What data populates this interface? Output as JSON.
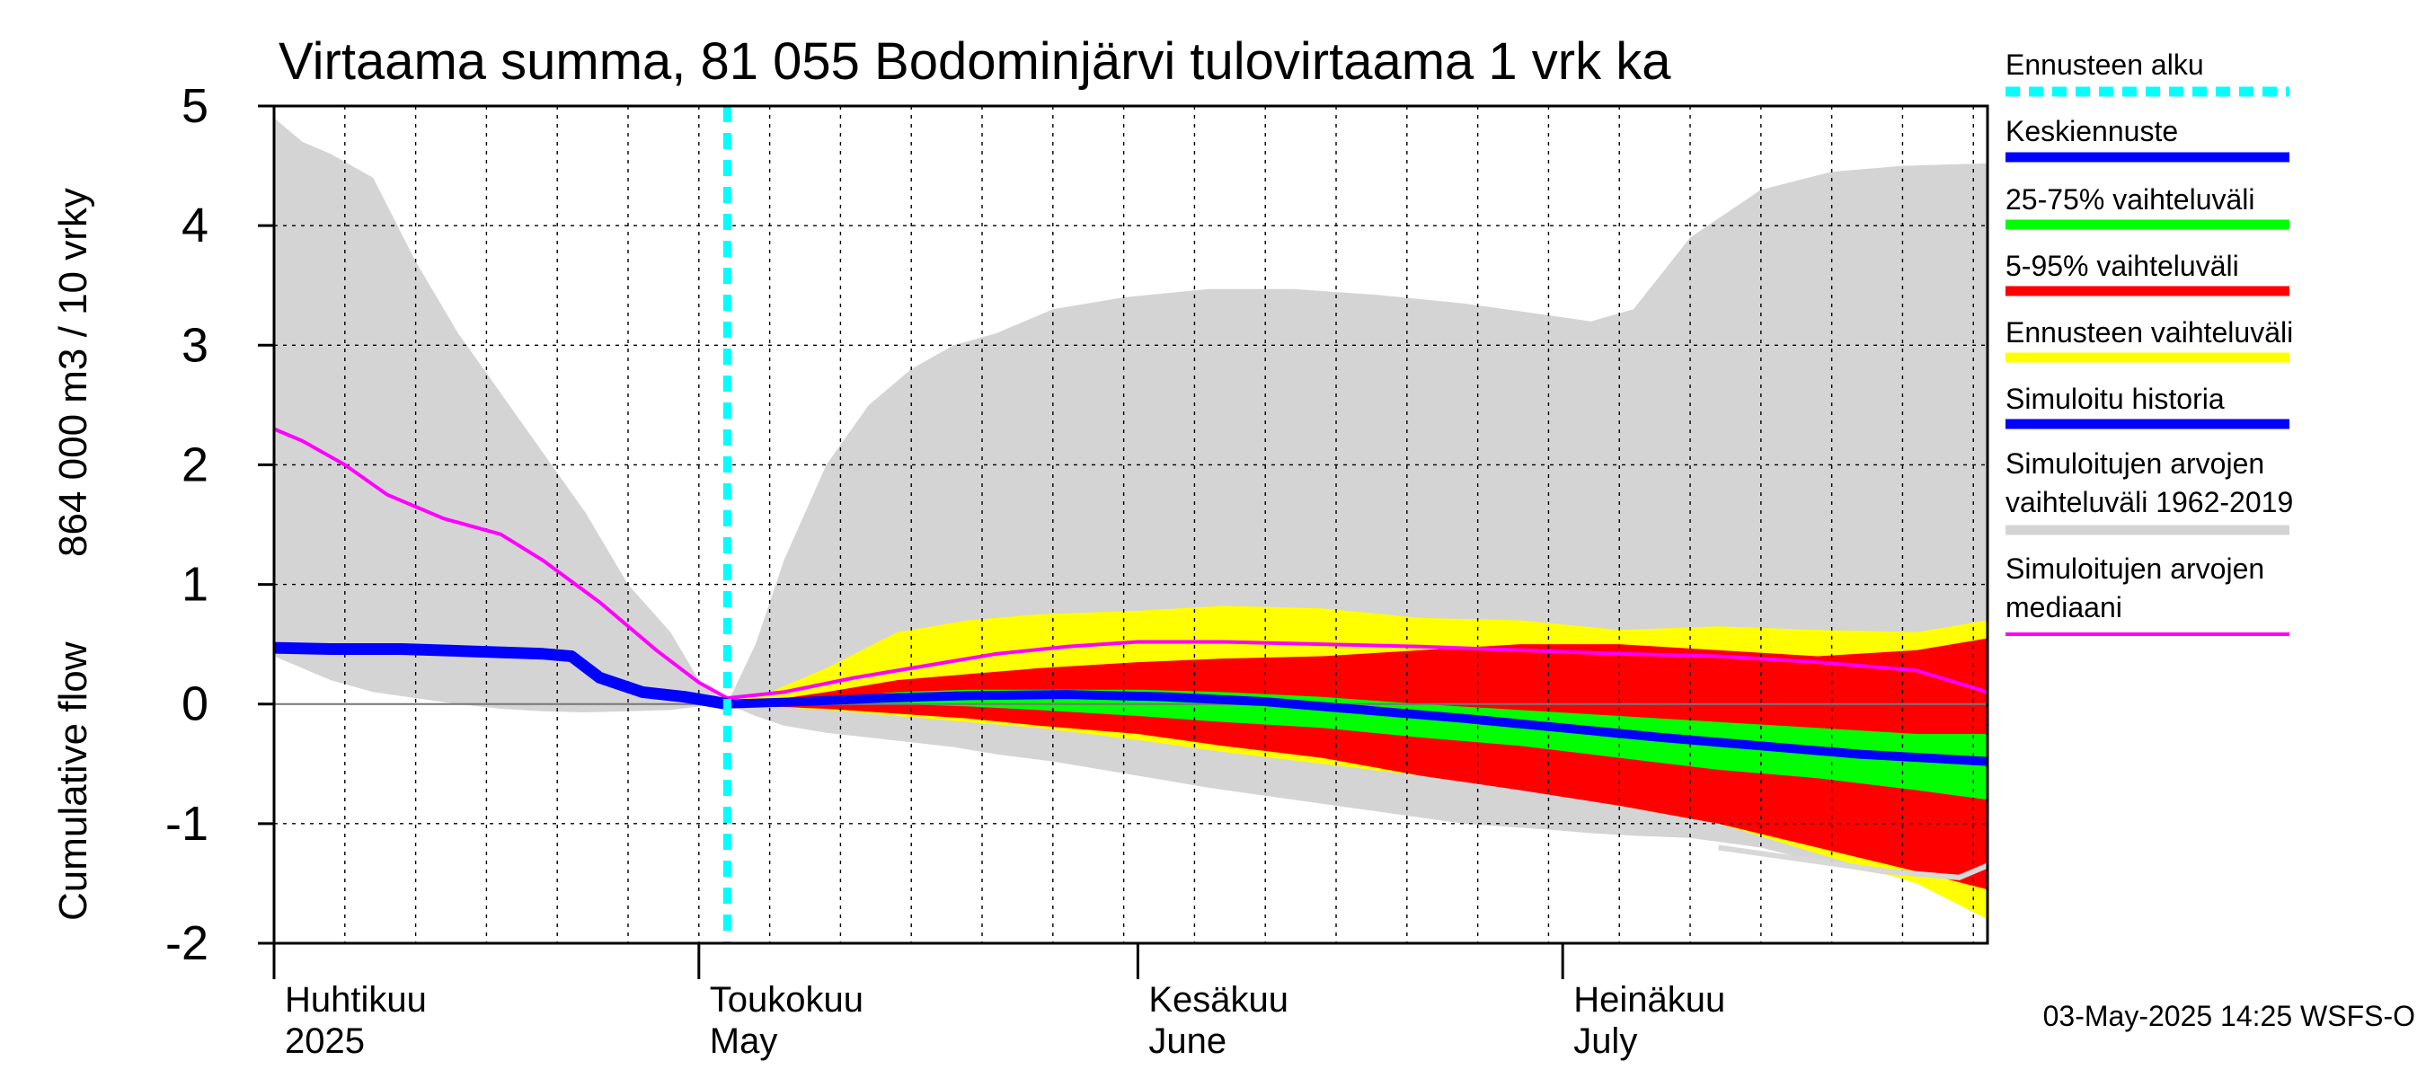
{
  "chart_data": {
    "type": "area",
    "title": "Virtaama summa, 81 055 Bodominjärvi tulovirtaama 1 vrk ka",
    "ylabel_lines": [
      "Cumulative flow",
      "864 000 m3 / 10 vrky"
    ],
    "ylim": [
      -2,
      5
    ],
    "yticks": [
      "5",
      "4",
      "3",
      "2",
      "1",
      "0",
      "-1",
      "-2"
    ],
    "xlim": [
      "2025-04-01",
      "2025-07-31"
    ],
    "month_labels": [
      {
        "date": "2025-04-01",
        "fi": "Huhtikuu",
        "en": "2025"
      },
      {
        "date": "2025-05-01",
        "fi": "Toukokuu",
        "en": "May"
      },
      {
        "date": "2025-06-01",
        "fi": "Kesäkuu",
        "en": "June"
      },
      {
        "date": "2025-07-01",
        "fi": "Heinäkuu",
        "en": "July"
      }
    ],
    "forecast_start": "2025-05-03",
    "history_range": {
      "name": "Simuloitujen arvojen vaihteluväli 1962-2019",
      "color": "#d4d4d4",
      "x": [
        "2025-04-01",
        "2025-04-03",
        "2025-04-05",
        "2025-04-08",
        "2025-04-11",
        "2025-04-14",
        "2025-04-17",
        "2025-04-20",
        "2025-04-23",
        "2025-04-26",
        "2025-04-29",
        "2025-05-01",
        "2025-05-03",
        "2025-05-05",
        "2025-05-07",
        "2025-05-10",
        "2025-05-13",
        "2025-05-16",
        "2025-05-19",
        "2025-05-22",
        "2025-05-26",
        "2025-05-31",
        "2025-06-06",
        "2025-06-12",
        "2025-06-18",
        "2025-06-24",
        "2025-06-30",
        "2025-07-03",
        "2025-07-06",
        "2025-07-10",
        "2025-07-15",
        "2025-07-20",
        "2025-07-25",
        "2025-07-31"
      ],
      "upper": [
        4.9,
        4.7,
        4.6,
        4.4,
        3.7,
        3.1,
        2.6,
        2.1,
        1.6,
        1.0,
        0.6,
        0.2,
        0.0,
        0.5,
        1.2,
        2.0,
        2.5,
        2.8,
        3.0,
        3.1,
        3.3,
        3.4,
        3.47,
        3.47,
        3.42,
        3.35,
        3.25,
        3.2,
        3.3,
        3.9,
        4.3,
        4.45,
        4.5,
        4.52
      ],
      "lower": [
        0.4,
        0.3,
        0.2,
        0.1,
        0.05,
        0.0,
        -0.04,
        -0.06,
        -0.07,
        -0.06,
        -0.05,
        -0.02,
        0.0,
        -0.1,
        -0.18,
        -0.24,
        -0.28,
        -0.32,
        -0.36,
        -0.42,
        -0.48,
        -0.58,
        -0.7,
        -0.8,
        -0.9,
        -1.0,
        -1.05,
        -1.08,
        -1.1,
        -1.12,
        -1.2,
        -1.35,
        -1.45,
        -1.5
      ]
    },
    "forecast_x": [
      "2025-05-03",
      "2025-05-06",
      "2025-05-10",
      "2025-05-15",
      "2025-05-20",
      "2025-05-25",
      "2025-06-01",
      "2025-06-07",
      "2025-06-14",
      "2025-06-21",
      "2025-06-28",
      "2025-07-05",
      "2025-07-12",
      "2025-07-19",
      "2025-07-26",
      "2025-07-31"
    ],
    "bands": [
      {
        "name": "Ennusteen vaihteluväli",
        "color": "#ffff00",
        "upper": [
          0.0,
          0.1,
          0.3,
          0.6,
          0.7,
          0.75,
          0.78,
          0.82,
          0.8,
          0.72,
          0.7,
          0.62,
          0.65,
          0.62,
          0.6,
          0.7
        ],
        "lower": [
          0.0,
          -0.02,
          -0.05,
          -0.1,
          -0.15,
          -0.2,
          -0.3,
          -0.4,
          -0.5,
          -0.6,
          -0.7,
          -0.85,
          -1.0,
          -1.25,
          -1.5,
          -1.8
        ]
      },
      {
        "name": "5-95% vaihteluväli",
        "color": "#ff0000",
        "upper": [
          0.0,
          0.03,
          0.1,
          0.2,
          0.25,
          0.3,
          0.35,
          0.38,
          0.4,
          0.45,
          0.5,
          0.5,
          0.45,
          0.4,
          0.45,
          0.55
        ],
        "lower": [
          0.0,
          -0.02,
          -0.04,
          -0.08,
          -0.12,
          -0.18,
          -0.25,
          -0.35,
          -0.45,
          -0.6,
          -0.72,
          -0.85,
          -1.0,
          -1.2,
          -1.4,
          -1.55
        ]
      },
      {
        "name": "25-75% vaihteluväli",
        "color": "#00ff00",
        "upper": [
          0.0,
          0.02,
          0.05,
          0.1,
          0.12,
          0.12,
          0.12,
          0.1,
          0.06,
          0.0,
          -0.05,
          -0.1,
          -0.15,
          -0.2,
          -0.25,
          -0.25
        ]
      },
      {
        "name": "25-75% lower",
        "color": "#00ff00",
        "lower": [
          0.0,
          0.0,
          0.0,
          0.0,
          -0.02,
          -0.05,
          -0.1,
          -0.15,
          -0.2,
          -0.28,
          -0.35,
          -0.45,
          -0.55,
          -0.62,
          -0.72,
          -0.8
        ]
      }
    ],
    "median_hist": {
      "name": "Simuloitujen arvojen mediaani",
      "color": "#ff00ff",
      "x": [
        "2025-04-01",
        "2025-04-03",
        "2025-04-06",
        "2025-04-09",
        "2025-04-13",
        "2025-04-17",
        "2025-04-20",
        "2025-04-24",
        "2025-04-28",
        "2025-05-01",
        "2025-05-03",
        "2025-05-07",
        "2025-05-12",
        "2025-05-17",
        "2025-05-22",
        "2025-05-27",
        "2025-06-01",
        "2025-06-07",
        "2025-06-14",
        "2025-06-21",
        "2025-06-28",
        "2025-07-05",
        "2025-07-12",
        "2025-07-19",
        "2025-07-26",
        "2025-07-31"
      ],
      "y": [
        2.3,
        2.2,
        2.0,
        1.75,
        1.55,
        1.42,
        1.2,
        0.85,
        0.45,
        0.18,
        0.05,
        0.1,
        0.22,
        0.32,
        0.42,
        0.48,
        0.52,
        0.52,
        0.5,
        0.48,
        0.45,
        0.42,
        0.4,
        0.35,
        0.28,
        0.1
      ]
    },
    "simulated_history": {
      "name": "Simuloitu historia",
      "color": "#0000ff",
      "x": [
        "2025-04-01",
        "2025-04-05",
        "2025-04-10",
        "2025-04-15",
        "2025-04-20",
        "2025-04-22",
        "2025-04-24",
        "2025-04-27",
        "2025-04-30",
        "2025-05-03"
      ],
      "y": [
        0.47,
        0.46,
        0.46,
        0.44,
        0.42,
        0.4,
        0.22,
        0.1,
        0.06,
        0.0
      ]
    },
    "mean_forecast": {
      "name": "Keskiennuste",
      "color": "#0000ff",
      "x": [
        "2025-05-03",
        "2025-05-08",
        "2025-05-14",
        "2025-05-20",
        "2025-05-27",
        "2025-06-03",
        "2025-06-10",
        "2025-06-17",
        "2025-06-24",
        "2025-07-01",
        "2025-07-08",
        "2025-07-15",
        "2025-07-22",
        "2025-07-31"
      ],
      "y": [
        0.0,
        0.02,
        0.05,
        0.07,
        0.08,
        0.06,
        0.02,
        -0.05,
        -0.12,
        -0.2,
        -0.28,
        -0.35,
        -0.42,
        -0.48
      ]
    },
    "history_lower_line": {
      "color": "#d8d8d8",
      "x": [
        "2025-07-12",
        "2025-07-18",
        "2025-07-24",
        "2025-07-29",
        "2025-07-31"
      ],
      "y": [
        -1.2,
        -1.3,
        -1.4,
        -1.45,
        -1.35
      ]
    },
    "legend": [
      {
        "label": "Ennusteen alku",
        "color": "#00ffff",
        "style": "dashed"
      },
      {
        "label": "Keskiennuste",
        "color": "#0000ff",
        "style": "solid"
      },
      {
        "label": "25-75% vaihteluväli",
        "color": "#00ff00",
        "style": "solid"
      },
      {
        "label": "5-95% vaihteluväli",
        "color": "#ff0000",
        "style": "solid"
      },
      {
        "label": "Ennusteen vaihteluväli",
        "color": "#ffff00",
        "style": "solid"
      },
      {
        "label": "Simuloitu historia",
        "color": "#0000ff",
        "style": "solid"
      },
      {
        "label": "Simuloitujen arvojen vaihteluväli 1962-2019",
        "color": "#d4d4d4",
        "style": "solid"
      },
      {
        "label": "Simuloitujen arvojen mediaani",
        "color": "#ff00ff",
        "style": "thin"
      }
    ],
    "legend_placement": "right",
    "grid": true,
    "footer": "03-May-2025 14:25 WSFS-O"
  }
}
